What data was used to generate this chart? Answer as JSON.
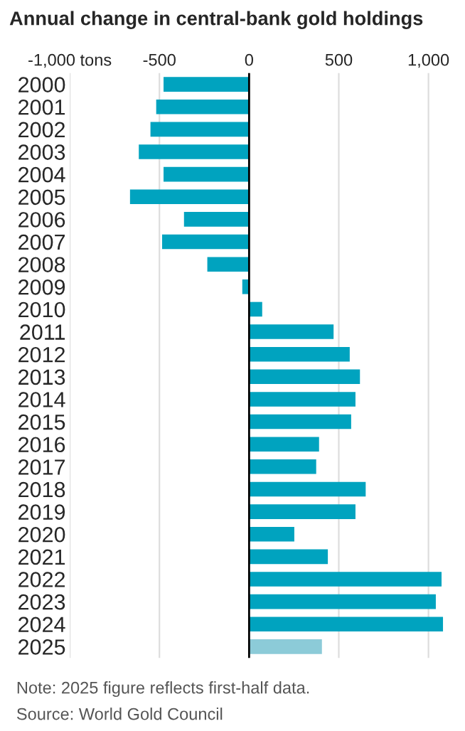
{
  "chart_data": {
    "type": "bar",
    "orientation": "horizontal",
    "title": "Annual change in central-bank gold holdings",
    "categories": [
      "2000",
      "2001",
      "2002",
      "2003",
      "2004",
      "2005",
      "2006",
      "2007",
      "2008",
      "2009",
      "2010",
      "2011",
      "2012",
      "2013",
      "2014",
      "2015",
      "2016",
      "2017",
      "2018",
      "2019",
      "2020",
      "2021",
      "2022",
      "2023",
      "2024",
      "2025"
    ],
    "values": [
      -477,
      -518,
      -550,
      -615,
      -477,
      -664,
      -363,
      -485,
      -233,
      -38,
      73,
      471,
      561,
      618,
      593,
      569,
      390,
      374,
      650,
      593,
      252,
      439,
      1073,
      1041,
      1081,
      406
    ],
    "colors": [
      "#00a3bf",
      "#00a3bf",
      "#00a3bf",
      "#00a3bf",
      "#00a3bf",
      "#00a3bf",
      "#00a3bf",
      "#00a3bf",
      "#00a3bf",
      "#00a3bf",
      "#00a3bf",
      "#00a3bf",
      "#00a3bf",
      "#00a3bf",
      "#00a3bf",
      "#00a3bf",
      "#00a3bf",
      "#00a3bf",
      "#00a3bf",
      "#00a3bf",
      "#00a3bf",
      "#00a3bf",
      "#00a3bf",
      "#00a3bf",
      "#00a3bf",
      "#8ccbd8"
    ],
    "xlim": [
      -1000,
      1100
    ],
    "xticks": [
      {
        "value": -1000,
        "label": "-1,000 tons"
      },
      -500,
      0,
      500,
      {
        "value": 1000,
        "label": "1,000"
      }
    ],
    "grid": "x",
    "ref_lines": [
      {
        "axis": "x",
        "value": 0,
        "label": null,
        "color": "#000000"
      }
    ],
    "annotations": [
      "Note: 2025 figure reflects first-half data.",
      "Source: World Gold Council"
    ]
  }
}
